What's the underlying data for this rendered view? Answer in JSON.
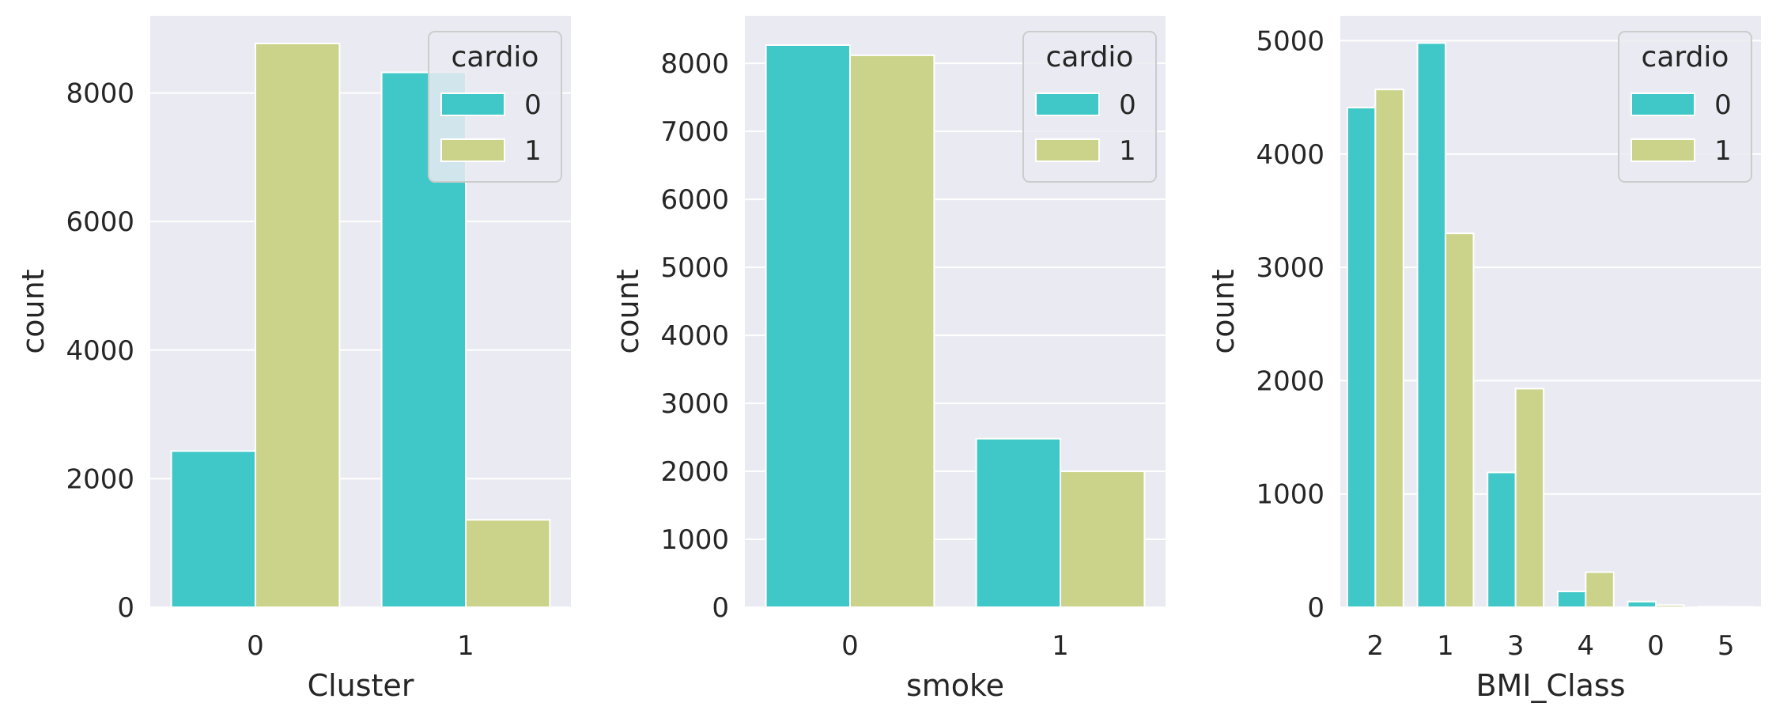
{
  "colors": {
    "series0": "#40c8c8",
    "series1": "#cbd38a",
    "plot_bg": "#eaeaf2",
    "grid": "#ffffff",
    "text": "#262626"
  },
  "chart_data": [
    {
      "type": "bar",
      "xlabel": "Cluster",
      "ylabel": "count",
      "categories": [
        "0",
        "1"
      ],
      "yticks": [
        0,
        2000,
        4000,
        6000,
        8000
      ],
      "ylim": [
        0,
        9200
      ],
      "legend": {
        "title": "cardio",
        "placement": "top-right",
        "entries": [
          "0",
          "1"
        ]
      },
      "series": [
        {
          "name": "0",
          "values": [
            2430,
            8320
          ]
        },
        {
          "name": "1",
          "values": [
            8770,
            1360
          ]
        }
      ]
    },
    {
      "type": "bar",
      "xlabel": "smoke",
      "ylabel": "count",
      "categories": [
        "0",
        "1"
      ],
      "yticks": [
        0,
        1000,
        2000,
        3000,
        4000,
        5000,
        6000,
        7000,
        8000
      ],
      "ylim": [
        0,
        8700
      ],
      "legend": {
        "title": "cardio",
        "placement": "top-right",
        "entries": [
          "0",
          "1"
        ]
      },
      "series": [
        {
          "name": "0",
          "values": [
            8270,
            2480
          ]
        },
        {
          "name": "1",
          "values": [
            8120,
            2000
          ]
        }
      ]
    },
    {
      "type": "bar",
      "xlabel": "BMI_Class",
      "ylabel": "count",
      "categories": [
        "2",
        "1",
        "3",
        "4",
        "0",
        "5"
      ],
      "yticks": [
        0,
        1000,
        2000,
        3000,
        4000,
        5000
      ],
      "ylim": [
        0,
        5220
      ],
      "legend": {
        "title": "cardio",
        "placement": "top-right",
        "entries": [
          "0",
          "1"
        ]
      },
      "series": [
        {
          "name": "0",
          "values": [
            4410,
            4980,
            1190,
            140,
            50,
            5
          ]
        },
        {
          "name": "1",
          "values": [
            4570,
            3300,
            1930,
            310,
            20,
            3
          ]
        }
      ]
    }
  ]
}
